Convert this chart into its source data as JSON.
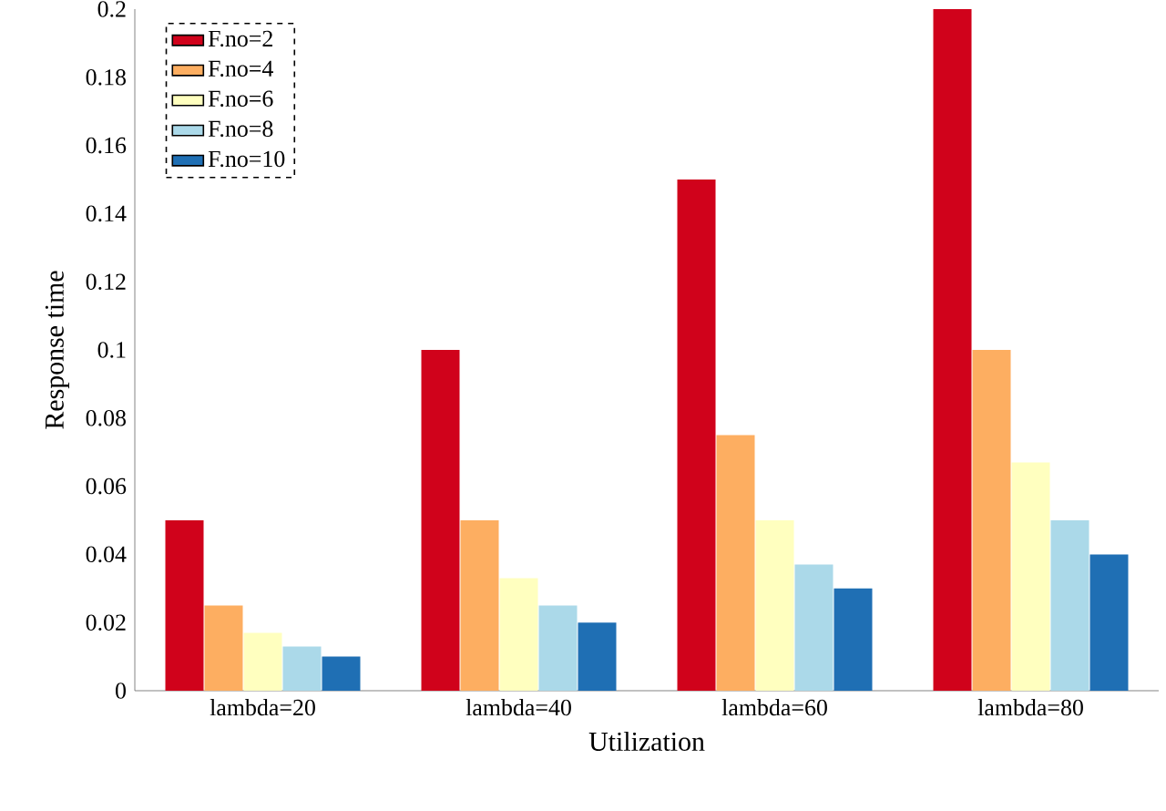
{
  "chart_data": {
    "type": "bar",
    "xlabel": "Utilization",
    "ylabel": "Response time",
    "categories": [
      "lambda=20",
      "lambda=40",
      "lambda=60",
      "lambda=80"
    ],
    "series": [
      {
        "name": "F.no=2",
        "color": "#d0021b",
        "values": [
          0.05,
          0.1,
          0.15,
          0.2
        ]
      },
      {
        "name": "F.no=4",
        "color": "#fdae61",
        "values": [
          0.025,
          0.05,
          0.075,
          0.1
        ]
      },
      {
        "name": "F.no=6",
        "color": "#ffffbf",
        "values": [
          0.017,
          0.033,
          0.05,
          0.067
        ]
      },
      {
        "name": "F.no=8",
        "color": "#abd9e9",
        "values": [
          0.013,
          0.025,
          0.037,
          0.05
        ]
      },
      {
        "name": "F.no=10",
        "color": "#1f6fb4",
        "values": [
          0.01,
          0.02,
          0.03,
          0.04
        ]
      }
    ],
    "ylim": [
      0,
      0.2
    ],
    "yticks": [
      0,
      0.02,
      0.04,
      0.06,
      0.08,
      0.1,
      0.12,
      0.14,
      0.16,
      0.18,
      0.2
    ],
    "grid": false,
    "legend": "top left"
  }
}
